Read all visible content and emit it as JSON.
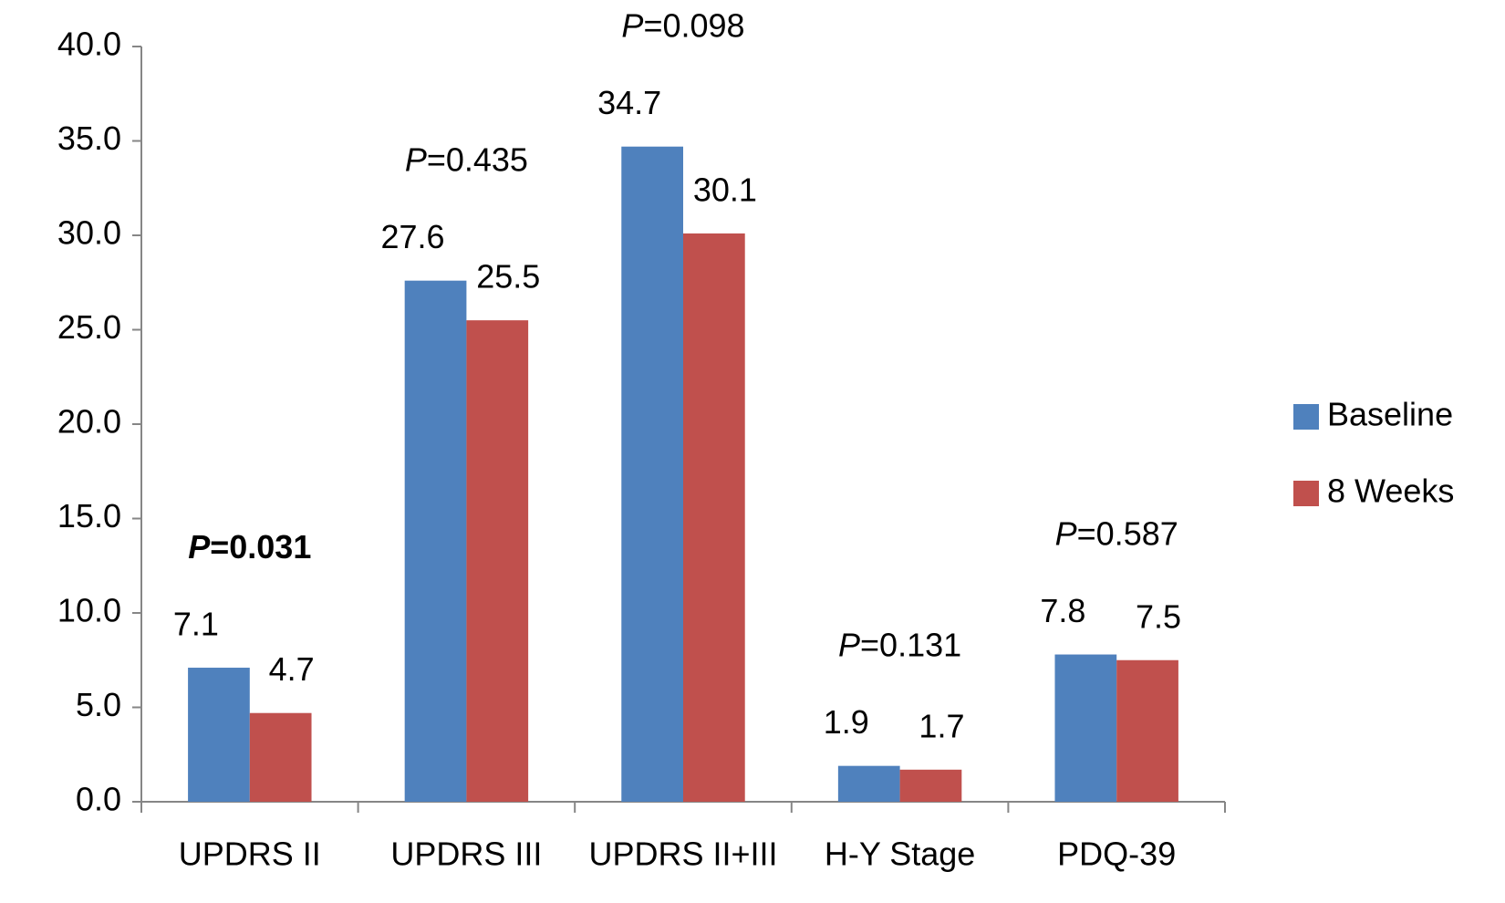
{
  "chart_data": {
    "type": "bar",
    "categories": [
      "UPDRS II",
      "UPDRS III",
      "UPDRS II+III",
      "H-Y Stage",
      "PDQ-39"
    ],
    "series": [
      {
        "name": "Baseline",
        "color": "#4f81bd",
        "values": [
          7.1,
          27.6,
          34.7,
          1.9,
          7.8
        ]
      },
      {
        "name": "8 Weeks",
        "color": "#c0504d",
        "values": [
          4.7,
          25.5,
          30.1,
          1.7,
          7.5
        ]
      }
    ],
    "p_values": [
      {
        "text": "P=0.031",
        "bold": true
      },
      {
        "text": "P=0.435",
        "bold": false
      },
      {
        "text": "P=0.098",
        "bold": false
      },
      {
        "text": "P=0.131",
        "bold": false
      },
      {
        "text": "P=0.587",
        "bold": false
      }
    ],
    "ylim": [
      0,
      40
    ],
    "yticks": [
      {
        "value": 0,
        "label": "0.0"
      },
      {
        "value": 5,
        "label": "5.0"
      },
      {
        "value": 10,
        "label": "10.0"
      },
      {
        "value": 15,
        "label": "15.0"
      },
      {
        "value": 20,
        "label": "20.0"
      },
      {
        "value": 25,
        "label": "25.0"
      },
      {
        "value": 30,
        "label": "30.0"
      },
      {
        "value": 35,
        "label": "35.0"
      },
      {
        "value": 40,
        "label": "40.0"
      }
    ],
    "legend": "right"
  }
}
